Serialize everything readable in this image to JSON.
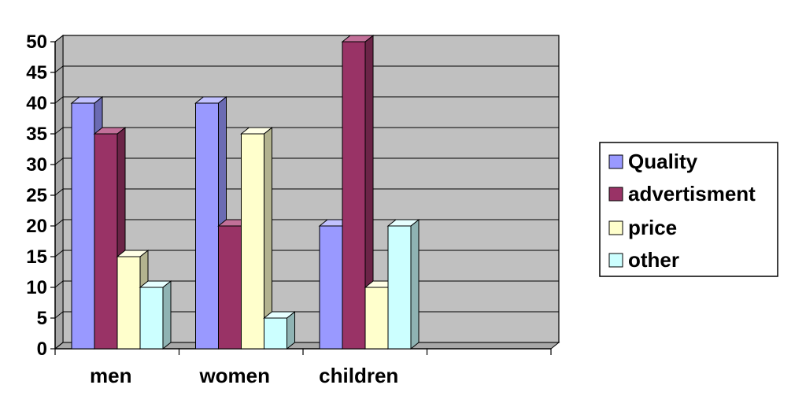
{
  "chart_data": {
    "type": "bar",
    "title": "",
    "xlabel": "",
    "ylabel": "",
    "categories": [
      "men",
      "women",
      "children",
      ""
    ],
    "series": [
      {
        "name": "Quality",
        "values": [
          40,
          40,
          20,
          null
        ]
      },
      {
        "name": "advertisment",
        "values": [
          35,
          20,
          50,
          null
        ]
      },
      {
        "name": "price",
        "values": [
          15,
          35,
          10,
          null
        ]
      },
      {
        "name": "other",
        "values": [
          10,
          5,
          20,
          null
        ]
      }
    ],
    "ylim": [
      0,
      50
    ],
    "yticks": [
      0,
      5,
      10,
      15,
      20,
      25,
      30,
      35,
      40,
      45,
      50
    ],
    "grid": true,
    "legend": "right",
    "three_d": true
  },
  "colors": {
    "wall": "#c0c0c0",
    "floor": "#a8a8a8",
    "grid": "#000000",
    "series": [
      "#9999ff",
      "#993366",
      "#ffffcc",
      "#ccffff"
    ],
    "series_side": [
      "#6b6bb3",
      "#6b2447",
      "#b3b38f",
      "#8fb3b3"
    ],
    "series_top": [
      "#c2c2ff",
      "#c27099",
      "#ffffe6",
      "#e6ffff"
    ]
  }
}
